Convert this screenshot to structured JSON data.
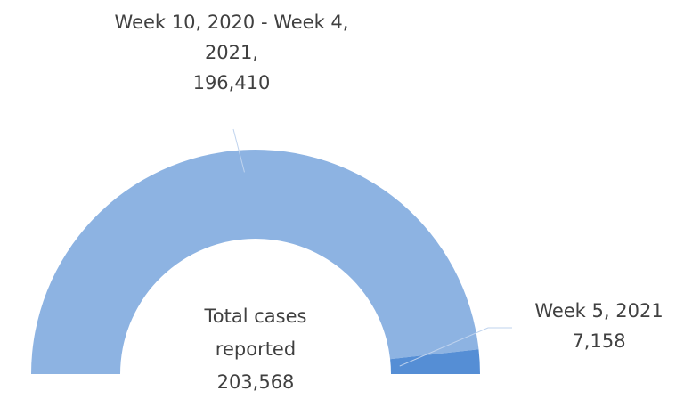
{
  "chart_data": {
    "type": "half-donut",
    "categories": [
      "Week 10, 2020 - Week 4, 2021,",
      "Week 5, 2021"
    ],
    "values": [
      196410,
      7158
    ],
    "value_labels": [
      "196,410",
      "7,158"
    ],
    "colors": [
      "#8db3e2",
      "#558ed5"
    ],
    "center_label": [
      "Total cases",
      "reported",
      "203,568"
    ]
  }
}
